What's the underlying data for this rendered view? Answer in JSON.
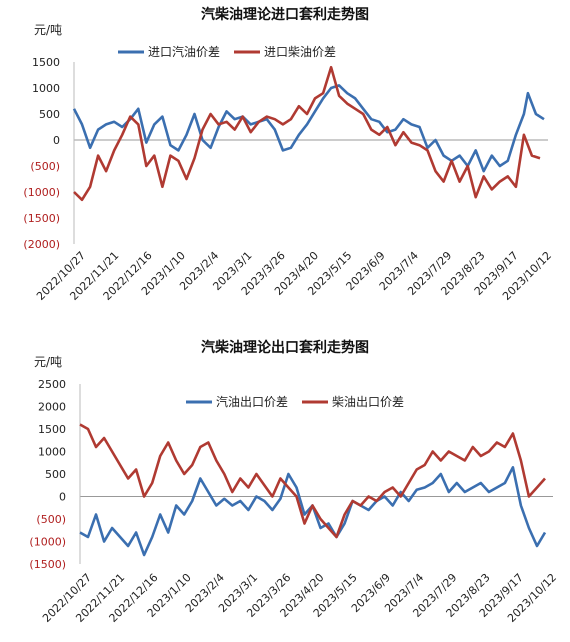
{
  "chart_data": [
    {
      "type": "line",
      "title": "汽柴油理论进口套利走势图",
      "ylabel": "元/吨",
      "xlabel": "",
      "ylim": [
        -2000,
        1500
      ],
      "yticks": [
        1500,
        1000,
        500,
        0,
        -500,
        -1000,
        -1500,
        -2000
      ],
      "ytick_labels": [
        "1500",
        "1000",
        "500",
        "0",
        "(500)",
        "(1000)",
        "(1500)",
        "(2000)"
      ],
      "x_tick_labels": [
        "2022/10/27",
        "2022/11/21",
        "2022/12/16",
        "2023/1/10",
        "2023/2/4",
        "2023/3/1",
        "2023/3/26",
        "2023/4/20",
        "2023/5/15",
        "2023/6/9",
        "2023/7/4",
        "2023/7/29",
        "2023/8/23",
        "2023/9/17",
        "2023/10/12"
      ],
      "legend_position": "top",
      "grid": false,
      "series": [
        {
          "name": "进口汽油价差",
          "color": "#3b6fb0",
          "values": [
            [
              0,
              600
            ],
            [
              2,
              300
            ],
            [
              4,
              -150
            ],
            [
              6,
              200
            ],
            [
              8,
              300
            ],
            [
              10,
              350
            ],
            [
              12,
              250
            ],
            [
              14,
              400
            ],
            [
              16,
              600
            ],
            [
              18,
              -50
            ],
            [
              20,
              300
            ],
            [
              22,
              450
            ],
            [
              24,
              -100
            ],
            [
              26,
              -200
            ],
            [
              28,
              100
            ],
            [
              30,
              500
            ],
            [
              32,
              0
            ],
            [
              34,
              -150
            ],
            [
              36,
              250
            ],
            [
              38,
              550
            ],
            [
              40,
              400
            ],
            [
              42,
              450
            ],
            [
              44,
              300
            ],
            [
              46,
              350
            ],
            [
              48,
              400
            ],
            [
              50,
              200
            ],
            [
              52,
              -200
            ],
            [
              54,
              -150
            ],
            [
              56,
              100
            ],
            [
              58,
              300
            ],
            [
              60,
              550
            ],
            [
              62,
              800
            ],
            [
              64,
              1000
            ],
            [
              66,
              1050
            ],
            [
              68,
              900
            ],
            [
              70,
              800
            ],
            [
              72,
              600
            ],
            [
              74,
              400
            ],
            [
              76,
              350
            ],
            [
              78,
              150
            ],
            [
              80,
              200
            ],
            [
              82,
              400
            ],
            [
              84,
              300
            ],
            [
              86,
              250
            ],
            [
              88,
              -150
            ],
            [
              90,
              0
            ],
            [
              92,
              -300
            ],
            [
              94,
              -400
            ],
            [
              96,
              -300
            ],
            [
              98,
              -500
            ],
            [
              100,
              -200
            ],
            [
              102,
              -600
            ],
            [
              104,
              -300
            ],
            [
              106,
              -500
            ],
            [
              108,
              -400
            ],
            [
              110,
              100
            ],
            [
              112,
              500
            ],
            [
              113,
              900
            ],
            [
              115,
              500
            ],
            [
              117,
              400
            ]
          ]
        },
        {
          "name": "进口柴油价差",
          "color": "#b03a32",
          "values": [
            [
              0,
              -1000
            ],
            [
              2,
              -1150
            ],
            [
              4,
              -900
            ],
            [
              6,
              -300
            ],
            [
              8,
              -600
            ],
            [
              10,
              -200
            ],
            [
              12,
              100
            ],
            [
              14,
              450
            ],
            [
              16,
              300
            ],
            [
              18,
              -500
            ],
            [
              20,
              -300
            ],
            [
              22,
              -900
            ],
            [
              24,
              -300
            ],
            [
              26,
              -400
            ],
            [
              28,
              -750
            ],
            [
              30,
              -350
            ],
            [
              32,
              200
            ],
            [
              34,
              500
            ],
            [
              36,
              300
            ],
            [
              38,
              350
            ],
            [
              40,
              200
            ],
            [
              42,
              450
            ],
            [
              44,
              150
            ],
            [
              46,
              350
            ],
            [
              48,
              450
            ],
            [
              50,
              400
            ],
            [
              52,
              300
            ],
            [
              54,
              400
            ],
            [
              56,
              650
            ],
            [
              58,
              500
            ],
            [
              60,
              800
            ],
            [
              62,
              900
            ],
            [
              64,
              1400
            ],
            [
              66,
              850
            ],
            [
              68,
              700
            ],
            [
              70,
              600
            ],
            [
              72,
              500
            ],
            [
              74,
              200
            ],
            [
              76,
              100
            ],
            [
              78,
              250
            ],
            [
              80,
              -100
            ],
            [
              82,
              150
            ],
            [
              84,
              -50
            ],
            [
              86,
              -100
            ],
            [
              88,
              -200
            ],
            [
              90,
              -600
            ],
            [
              92,
              -800
            ],
            [
              94,
              -400
            ],
            [
              96,
              -800
            ],
            [
              98,
              -500
            ],
            [
              100,
              -1100
            ],
            [
              102,
              -700
            ],
            [
              104,
              -950
            ],
            [
              106,
              -800
            ],
            [
              108,
              -700
            ],
            [
              110,
              -900
            ],
            [
              112,
              100
            ],
            [
              114,
              -300
            ],
            [
              116,
              -350
            ]
          ]
        }
      ]
    },
    {
      "type": "line",
      "title": "汽柴油理论出口套利走势图",
      "ylabel": "元/吨",
      "xlabel": "",
      "ylim": [
        -1500,
        2500
      ],
      "yticks": [
        2500,
        2000,
        1500,
        1000,
        500,
        0,
        -500,
        -1000,
        -1500
      ],
      "ytick_labels": [
        "2500",
        "2000",
        "1500",
        "1000",
        "500",
        "0",
        "(500)",
        "(1000)",
        "(1500)"
      ],
      "x_tick_labels": [
        "2022/10/27",
        "2022/11/21",
        "2022/12/16",
        "2023/1/10",
        "2023/2/4",
        "2023/3/1",
        "2023/3/26",
        "2023/4/20",
        "2023/5/15",
        "2023/6/9",
        "2023/7/4",
        "2023/7/29",
        "2023/8/23",
        "2023/9/17",
        "2023/10/12"
      ],
      "legend_position": "top",
      "grid": false,
      "series": [
        {
          "name": "汽油出口价差",
          "color": "#3b6fb0",
          "values": [
            [
              0,
              -800
            ],
            [
              2,
              -900
            ],
            [
              4,
              -400
            ],
            [
              6,
              -1000
            ],
            [
              8,
              -700
            ],
            [
              10,
              -900
            ],
            [
              12,
              -1100
            ],
            [
              14,
              -800
            ],
            [
              16,
              -1300
            ],
            [
              18,
              -900
            ],
            [
              20,
              -400
            ],
            [
              22,
              -800
            ],
            [
              24,
              -200
            ],
            [
              26,
              -400
            ],
            [
              28,
              -100
            ],
            [
              30,
              400
            ],
            [
              32,
              100
            ],
            [
              34,
              -200
            ],
            [
              36,
              -50
            ],
            [
              38,
              -200
            ],
            [
              40,
              -100
            ],
            [
              42,
              -300
            ],
            [
              44,
              0
            ],
            [
              46,
              -100
            ],
            [
              48,
              -300
            ],
            [
              50,
              -50
            ],
            [
              52,
              500
            ],
            [
              54,
              200
            ],
            [
              56,
              -400
            ],
            [
              58,
              -200
            ],
            [
              60,
              -700
            ],
            [
              62,
              -600
            ],
            [
              64,
              -900
            ],
            [
              66,
              -600
            ],
            [
              68,
              -100
            ],
            [
              70,
              -200
            ],
            [
              72,
              -300
            ],
            [
              74,
              -100
            ],
            [
              76,
              0
            ],
            [
              78,
              -200
            ],
            [
              80,
              100
            ],
            [
              82,
              -100
            ],
            [
              84,
              150
            ],
            [
              86,
              200
            ],
            [
              88,
              300
            ],
            [
              90,
              500
            ],
            [
              92,
              100
            ],
            [
              94,
              300
            ],
            [
              96,
              100
            ],
            [
              98,
              200
            ],
            [
              100,
              300
            ],
            [
              102,
              100
            ],
            [
              104,
              200
            ],
            [
              106,
              300
            ],
            [
              108,
              650
            ],
            [
              110,
              -200
            ],
            [
              112,
              -700
            ],
            [
              114,
              -1100
            ],
            [
              116,
              -800
            ]
          ]
        },
        {
          "name": "柴油出口价差",
          "color": "#b03a32",
          "values": [
            [
              0,
              1600
            ],
            [
              2,
              1500
            ],
            [
              4,
              1100
            ],
            [
              6,
              1300
            ],
            [
              8,
              1000
            ],
            [
              10,
              700
            ],
            [
              12,
              400
            ],
            [
              14,
              600
            ],
            [
              16,
              0
            ],
            [
              18,
              300
            ],
            [
              20,
              900
            ],
            [
              22,
              1200
            ],
            [
              24,
              800
            ],
            [
              26,
              500
            ],
            [
              28,
              700
            ],
            [
              30,
              1100
            ],
            [
              32,
              1200
            ],
            [
              34,
              800
            ],
            [
              36,
              500
            ],
            [
              38,
              100
            ],
            [
              40,
              400
            ],
            [
              42,
              200
            ],
            [
              44,
              500
            ],
            [
              46,
              250
            ],
            [
              48,
              0
            ],
            [
              50,
              400
            ],
            [
              52,
              200
            ],
            [
              54,
              0
            ],
            [
              56,
              -600
            ],
            [
              58,
              -200
            ],
            [
              60,
              -500
            ],
            [
              62,
              -700
            ],
            [
              64,
              -900
            ],
            [
              66,
              -400
            ],
            [
              68,
              -100
            ],
            [
              70,
              -200
            ],
            [
              72,
              0
            ],
            [
              74,
              -100
            ],
            [
              76,
              100
            ],
            [
              78,
              200
            ],
            [
              80,
              0
            ],
            [
              82,
              300
            ],
            [
              84,
              600
            ],
            [
              86,
              700
            ],
            [
              88,
              1000
            ],
            [
              90,
              800
            ],
            [
              92,
              1000
            ],
            [
              94,
              900
            ],
            [
              96,
              800
            ],
            [
              98,
              1100
            ],
            [
              100,
              900
            ],
            [
              102,
              1000
            ],
            [
              104,
              1200
            ],
            [
              106,
              1100
            ],
            [
              108,
              1400
            ],
            [
              110,
              800
            ],
            [
              112,
              0
            ],
            [
              114,
              200
            ],
            [
              116,
              400
            ]
          ]
        }
      ]
    }
  ]
}
